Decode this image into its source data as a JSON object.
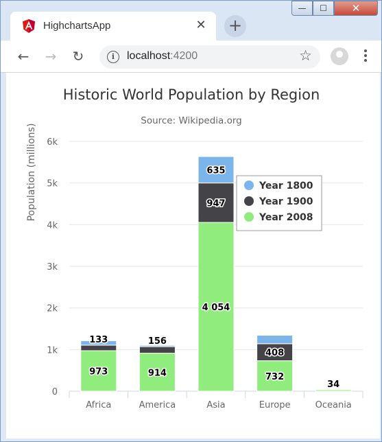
{
  "browser": {
    "tab_title": "HighchartsApp",
    "tab_close": "✕",
    "new_tab": "+",
    "url_host": "localhost",
    "url_port": ":4200",
    "window_controls": {
      "minimize": "—",
      "maximize": "☐",
      "close": "✕"
    },
    "colors": {
      "tab_strip": "#dae6f3",
      "angular_logo": "#dd1b16"
    }
  },
  "chart_data": {
    "type": "bar",
    "stacked": true,
    "title": "Historic World Population by Region",
    "subtitle": "Source: Wikipedia.org",
    "ylabel": "Population (millions)",
    "categories": [
      "Africa",
      "America",
      "Asia",
      "Europe",
      "Oceania"
    ],
    "y_ticks": [
      "0",
      "1k",
      "2k",
      "3k",
      "4k",
      "5k",
      "6k"
    ],
    "ylim": [
      0,
      6000
    ],
    "grid": true,
    "legend_position": "right, inside plot",
    "series": [
      {
        "name": "Year 1800",
        "color": "#7cb5ec",
        "values": [
          107,
          31,
          635,
          203,
          2
        ],
        "labels": [
          "",
          "",
          "635",
          "",
          ""
        ]
      },
      {
        "name": "Year 1900",
        "color": "#434348",
        "values": [
          133,
          156,
          947,
          408,
          6
        ],
        "labels": [
          "133",
          "156",
          "947",
          "408",
          ""
        ]
      },
      {
        "name": "Year 2008",
        "color": "#90ed7d",
        "values": [
          973,
          914,
          4054,
          732,
          34
        ],
        "labels": [
          "973",
          "914",
          "4 054",
          "732",
          "34"
        ]
      }
    ]
  }
}
